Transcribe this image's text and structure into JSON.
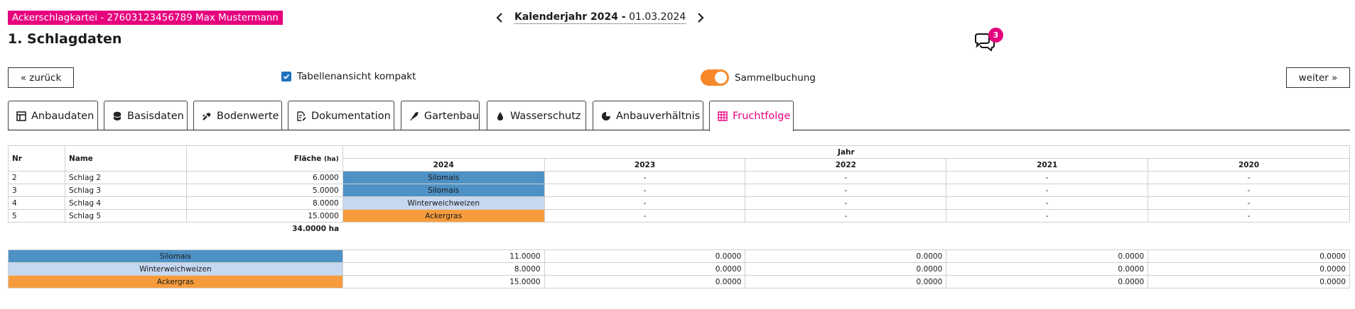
{
  "header": {
    "file_badge": "Ackerschlagkartei - 27603123456789 Max Mustermann",
    "page_title": "1. Schlagdaten",
    "year_label": "Kalenderjahr 2024 -",
    "year_date": "01.03.2024",
    "chat_count": "3"
  },
  "controls": {
    "back_label": "« zurück",
    "next_label": "weiter »",
    "compact_label": "Tabellenansicht kompakt",
    "compact_checked": true,
    "sammel_label": "Sammelbuchung",
    "sammel_on": true
  },
  "tabs": [
    {
      "label": "Anbaudaten",
      "icon": "table-layout-icon"
    },
    {
      "label": "Basisdaten",
      "icon": "database-icon"
    },
    {
      "label": "Bodenwerte",
      "icon": "soil-tool-icon"
    },
    {
      "label": "Dokumentation",
      "icon": "document-edit-icon"
    },
    {
      "label": "Gartenbau",
      "icon": "feather-icon"
    },
    {
      "label": "Wasserschutz",
      "icon": "water-drop-icon"
    },
    {
      "label": "Anbauverhältnis",
      "icon": "pie-chart-icon"
    },
    {
      "label": "Fruchtfolge",
      "icon": "grid-icon",
      "active": true
    }
  ],
  "table": {
    "col_nr": "Nr",
    "col_name": "Name",
    "col_flaeche": "Fläche",
    "col_flaeche_unit": "(ha)",
    "col_jahr": "Jahr",
    "years": [
      "2024",
      "2023",
      "2022",
      "2021",
      "2020"
    ],
    "rows": [
      {
        "nr": "2",
        "name": "Schlag 2",
        "flaeche": "6.0000",
        "crops": [
          "Silomais",
          "-",
          "-",
          "-",
          "-"
        ]
      },
      {
        "nr": "3",
        "name": "Schlag 3",
        "flaeche": "5.0000",
        "crops": [
          "Silomais",
          "-",
          "-",
          "-",
          "-"
        ]
      },
      {
        "nr": "4",
        "name": "Schlag 4",
        "flaeche": "8.0000",
        "crops": [
          "Winterweichweizen",
          "-",
          "-",
          "-",
          "-"
        ]
      },
      {
        "nr": "5",
        "name": "Schlag 5",
        "flaeche": "15.0000",
        "crops": [
          "Ackergras",
          "-",
          "-",
          "-",
          "-"
        ]
      }
    ],
    "total": "34.0000 ha"
  },
  "summary": [
    {
      "crop": "Silomais",
      "values": [
        "11.0000",
        "0.0000",
        "0.0000",
        "0.0000",
        "0.0000"
      ]
    },
    {
      "crop": "Winterweichweizen",
      "values": [
        "8.0000",
        "0.0000",
        "0.0000",
        "0.0000",
        "0.0000"
      ]
    },
    {
      "crop": "Ackergras",
      "values": [
        "15.0000",
        "0.0000",
        "0.0000",
        "0.0000",
        "0.0000"
      ]
    }
  ],
  "colors": {
    "brand": "#e6007e",
    "toggle": "#f7882a",
    "silomais": "#4e91c5",
    "winterweichweizen": "#c5d8f0",
    "ackergras": "#f79c3c"
  }
}
